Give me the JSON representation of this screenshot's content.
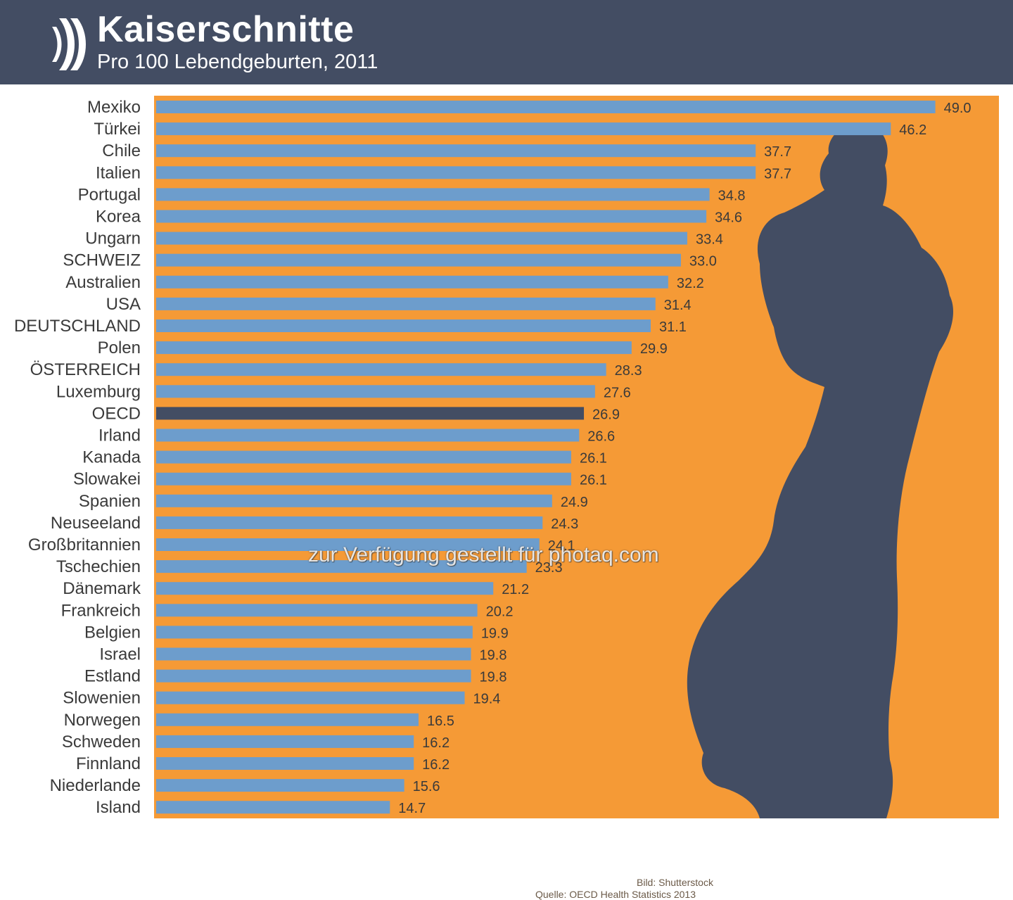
{
  "header": {
    "title": "Kaiserschnitte",
    "subtitle": "Pro 100 Lebendgeburten, 2011",
    "logo_icon": "oecd-chevrons-icon"
  },
  "colors": {
    "header_bg": "#434d63",
    "plot_bg": "#f59a36",
    "bar": "#6d9dcc",
    "bar_highlight": "#434d63",
    "silhouette": "#434d63",
    "label_text": "#3a3a3a"
  },
  "chart_data": {
    "type": "bar",
    "orientation": "horizontal",
    "title": "Kaiserschnitte",
    "subtitle": "Pro 100 Lebendgeburten, 2011",
    "xlabel": "",
    "ylabel": "",
    "xlim": [
      0,
      53
    ],
    "grid": false,
    "legend": "none",
    "highlight_category": "OECD",
    "categories": [
      "Mexiko",
      "Türkei",
      "Chile",
      "Italien",
      "Portugal",
      "Korea",
      "Ungarn",
      "SCHWEIZ",
      "Australien",
      "USA",
      "DEUTSCHLAND",
      "Polen",
      "ÖSTERREICH",
      "Luxemburg",
      "OECD",
      "Irland",
      "Kanada",
      "Slowakei",
      "Spanien",
      "Neuseeland",
      "Großbritannien",
      "Tschechien",
      "Dänemark",
      "Frankreich",
      "Belgien",
      "Israel",
      "Estland",
      "Slowenien",
      "Norwegen",
      "Schweden",
      "Finnland",
      "Niederlande",
      "Island"
    ],
    "values": [
      49.0,
      46.2,
      37.7,
      37.7,
      34.8,
      34.6,
      33.4,
      33.0,
      32.2,
      31.4,
      31.1,
      29.9,
      28.3,
      27.6,
      26.9,
      26.6,
      26.1,
      26.1,
      24.9,
      24.3,
      24.1,
      23.3,
      21.2,
      20.2,
      19.9,
      19.8,
      19.8,
      19.4,
      16.5,
      16.2,
      16.2,
      15.6,
      14.7
    ],
    "value_labels": [
      "49.0",
      "46.2",
      "37.7",
      "37.7",
      "34.8",
      "34.6",
      "33.4",
      "33.0",
      "32.2",
      "31.4",
      "31.1",
      "29.9",
      "28.3",
      "27.6",
      "26.9",
      "26.6",
      "26.1",
      "26.1",
      "24.9",
      "24.3",
      "24.1",
      "23.3",
      "21.2",
      "20.2",
      "19.9",
      "19.8",
      "19.8",
      "19.4",
      "16.5",
      "16.2",
      "16.2",
      "15.6",
      "14.7"
    ]
  },
  "watermark": "zur Verfügung gestellt für photaq.com",
  "credits": {
    "image": "Bild: Shutterstock",
    "source": "Quelle: OECD Health Statistics 2013"
  }
}
